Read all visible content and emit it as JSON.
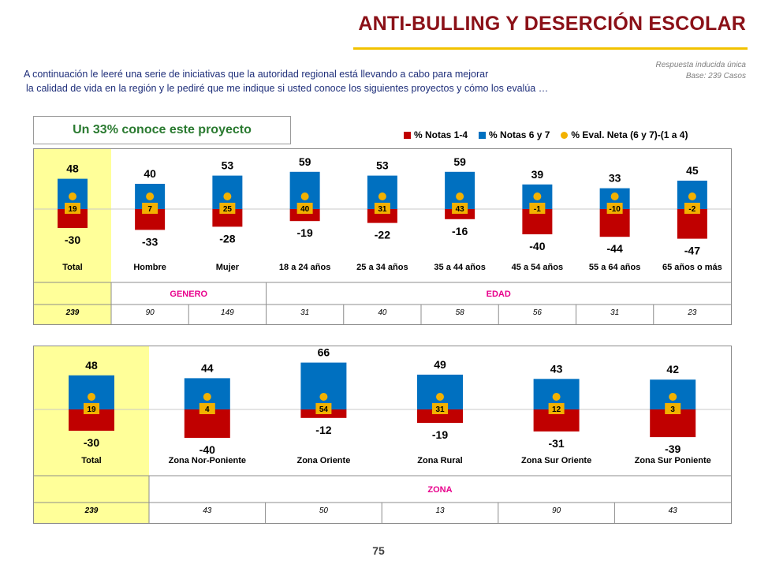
{
  "header": {
    "title": "ANTI-BULLING Y DESERCIÓN ESCOLAR",
    "intro_line1": "A continuación le leeré una serie de iniciativas que la autoridad regional está llevando a cabo para mejorar",
    "intro_line2": "la calidad de vida en la región y le pediré que me indique si usted conoce los siguientes proyectos y cómo los evalúa …",
    "meta_line1": "Respuesta inducida única",
    "meta_line2": "Base: 239 Casos"
  },
  "highlight": "Un 33% conoce este proyecto",
  "legend": [
    {
      "label": "% Notas 1-4",
      "color": "#c00000",
      "shape": "square"
    },
    {
      "label": "% Notas 6 y 7",
      "color": "#0070c0",
      "shape": "square"
    },
    {
      "label": "% Eval. Neta (6 y 7)-(1 a 4)",
      "color": "#f2b100",
      "shape": "dot"
    }
  ],
  "colors": {
    "negative": "#c00000",
    "positive": "#0070c0",
    "net": "#f2b100",
    "total_bg": "#ffff99",
    "accent": "#e8008c"
  },
  "chart_data": [
    {
      "type": "bar",
      "stacked": "diverging",
      "categories": [
        "Total",
        "Hombre",
        "Mujer",
        "18 a 24 años",
        "25 a 34 años",
        "35 a 44 años",
        "45 a 54 años",
        "55 a 64 años",
        "65 años o más"
      ],
      "series": [
        {
          "name": "% Notas 1-4",
          "values": [
            -30,
            -33,
            -28,
            -19,
            -22,
            -16,
            -40,
            -44,
            -47
          ]
        },
        {
          "name": "% Notas 6 y 7",
          "values": [
            48,
            40,
            53,
            59,
            53,
            59,
            39,
            33,
            45
          ]
        },
        {
          "name": "% Eval. Neta (6 y 7)-(1 a 4)",
          "values": [
            19,
            7,
            25,
            40,
            31,
            43,
            -1,
            -10,
            -2
          ]
        }
      ],
      "groups": [
        {
          "label": "",
          "span": 1
        },
        {
          "label": "GENERO",
          "span": 2
        },
        {
          "label": "EDAD",
          "span": 6
        }
      ],
      "bases": [
        "239",
        "90",
        "149",
        "31",
        "40",
        "58",
        "56",
        "31",
        "23"
      ]
    },
    {
      "type": "bar",
      "stacked": "diverging",
      "categories": [
        "Total",
        "Zona Nor-Poniente",
        "Zona Oriente",
        "Zona Rural",
        "Zona Sur Oriente",
        "Zona Sur Poniente"
      ],
      "series": [
        {
          "name": "% Notas 1-4",
          "values": [
            -30,
            -40,
            -12,
            -19,
            -31,
            -39
          ]
        },
        {
          "name": "% Notas 6 y 7",
          "values": [
            48,
            44,
            66,
            49,
            43,
            42
          ]
        },
        {
          "name": "% Eval. Neta (6 y 7)-(1 a 4)",
          "values": [
            19,
            4,
            54,
            31,
            12,
            3
          ]
        }
      ],
      "groups": [
        {
          "label": "",
          "span": 1
        },
        {
          "label": "ZONA",
          "span": 5
        }
      ],
      "bases": [
        "239",
        "43",
        "50",
        "13",
        "90",
        "43"
      ]
    }
  ],
  "page_number": "75"
}
